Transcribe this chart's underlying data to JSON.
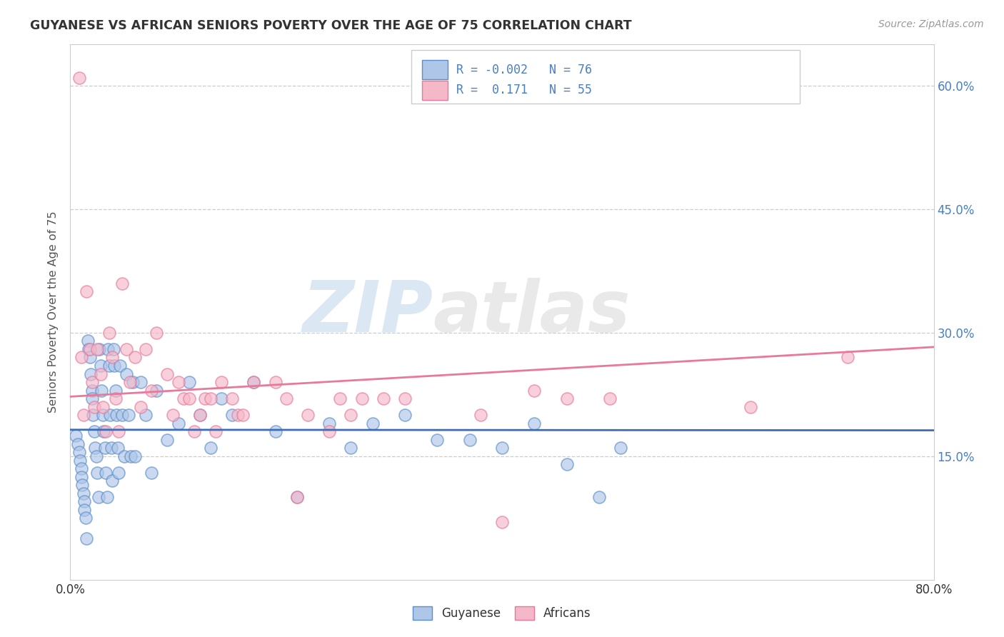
{
  "title": "GUYANESE VS AFRICAN SENIORS POVERTY OVER THE AGE OF 75 CORRELATION CHART",
  "source": "Source: ZipAtlas.com",
  "xlim": [
    0.0,
    0.8
  ],
  "ylim": [
    0.0,
    0.65
  ],
  "guyanese_R": -0.002,
  "guyanese_N": 76,
  "africans_R": 0.171,
  "africans_N": 55,
  "blue_fill": "#aec6e8",
  "blue_edge": "#5b8fc9",
  "pink_fill": "#f5b8c8",
  "pink_edge": "#e8789a",
  "blue_line_color": "#3d6eb5",
  "pink_line_color": "#e8799b",
  "legend_label_blue": "Guyanese",
  "legend_label_pink": "Africans",
  "watermark_zip": "ZIP",
  "watermark_atlas": "atlas",
  "ylabel_ticks": [
    0.15,
    0.3,
    0.45,
    0.6
  ],
  "ylabel_labels": [
    "15.0%",
    "30.0%",
    "45.0%",
    "60.0%"
  ],
  "guyanese_x": [
    0.005,
    0.007,
    0.008,
    0.009,
    0.01,
    0.01,
    0.011,
    0.012,
    0.013,
    0.013,
    0.014,
    0.015,
    0.016,
    0.017,
    0.018,
    0.019,
    0.02,
    0.02,
    0.021,
    0.022,
    0.023,
    0.024,
    0.025,
    0.026,
    0.027,
    0.028,
    0.029,
    0.03,
    0.031,
    0.032,
    0.033,
    0.034,
    0.035,
    0.036,
    0.037,
    0.038,
    0.039,
    0.04,
    0.041,
    0.042,
    0.043,
    0.044,
    0.045,
    0.046,
    0.048,
    0.05,
    0.052,
    0.054,
    0.056,
    0.058,
    0.06,
    0.065,
    0.07,
    0.075,
    0.08,
    0.09,
    0.1,
    0.11,
    0.12,
    0.13,
    0.14,
    0.15,
    0.17,
    0.19,
    0.21,
    0.24,
    0.26,
    0.28,
    0.31,
    0.34,
    0.37,
    0.4,
    0.43,
    0.46,
    0.49,
    0.51
  ],
  "guyanese_y": [
    0.175,
    0.165,
    0.155,
    0.145,
    0.135,
    0.125,
    0.115,
    0.105,
    0.095,
    0.085,
    0.075,
    0.05,
    0.29,
    0.28,
    0.27,
    0.25,
    0.23,
    0.22,
    0.2,
    0.18,
    0.16,
    0.15,
    0.13,
    0.1,
    0.28,
    0.26,
    0.23,
    0.2,
    0.18,
    0.16,
    0.13,
    0.1,
    0.28,
    0.26,
    0.2,
    0.16,
    0.12,
    0.28,
    0.26,
    0.23,
    0.2,
    0.16,
    0.13,
    0.26,
    0.2,
    0.15,
    0.25,
    0.2,
    0.15,
    0.24,
    0.15,
    0.24,
    0.2,
    0.13,
    0.23,
    0.17,
    0.19,
    0.24,
    0.2,
    0.16,
    0.22,
    0.2,
    0.24,
    0.18,
    0.1,
    0.19,
    0.16,
    0.19,
    0.2,
    0.17,
    0.17,
    0.16,
    0.19,
    0.14,
    0.1,
    0.16
  ],
  "africans_x": [
    0.008,
    0.01,
    0.012,
    0.015,
    0.018,
    0.02,
    0.022,
    0.025,
    0.028,
    0.03,
    0.033,
    0.036,
    0.039,
    0.042,
    0.045,
    0.048,
    0.052,
    0.055,
    0.06,
    0.065,
    0.07,
    0.075,
    0.08,
    0.09,
    0.095,
    0.1,
    0.105,
    0.11,
    0.115,
    0.12,
    0.125,
    0.13,
    0.135,
    0.14,
    0.15,
    0.155,
    0.16,
    0.17,
    0.19,
    0.2,
    0.21,
    0.22,
    0.24,
    0.25,
    0.26,
    0.27,
    0.29,
    0.31,
    0.38,
    0.4,
    0.43,
    0.46,
    0.5,
    0.63,
    0.72
  ],
  "africans_y": [
    0.61,
    0.27,
    0.2,
    0.35,
    0.28,
    0.24,
    0.21,
    0.28,
    0.25,
    0.21,
    0.18,
    0.3,
    0.27,
    0.22,
    0.18,
    0.36,
    0.28,
    0.24,
    0.27,
    0.21,
    0.28,
    0.23,
    0.3,
    0.25,
    0.2,
    0.24,
    0.22,
    0.22,
    0.18,
    0.2,
    0.22,
    0.22,
    0.18,
    0.24,
    0.22,
    0.2,
    0.2,
    0.24,
    0.24,
    0.22,
    0.1,
    0.2,
    0.18,
    0.22,
    0.2,
    0.22,
    0.22,
    0.22,
    0.2,
    0.07,
    0.23,
    0.22,
    0.22,
    0.21,
    0.27
  ]
}
